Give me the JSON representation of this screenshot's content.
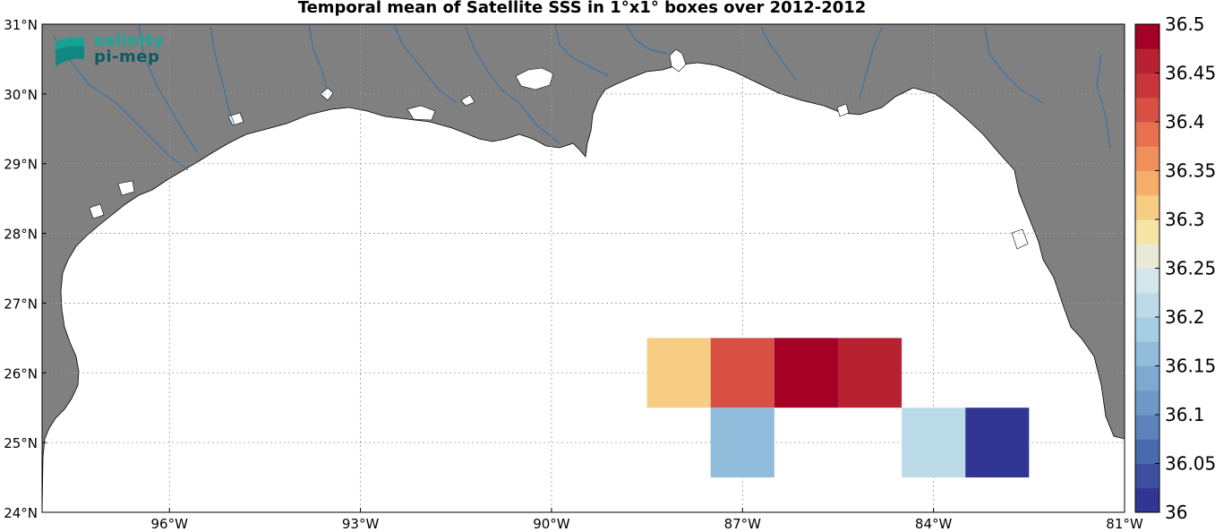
{
  "title": "Temporal mean of Satellite SSS in 1°x1° boxes over 2012-2012",
  "logo": {
    "line1": "salinity",
    "line2": "pi-mep"
  },
  "map": {
    "lon_range": [
      -98,
      -81
    ],
    "lat_range": [
      24,
      31
    ],
    "land_color": "#808080",
    "ocean_color": "#ffffff",
    "river_color": "#2a6fb0",
    "grid": true,
    "lon_ticks": [
      {
        "value": -96,
        "label": "96°W"
      },
      {
        "value": -93,
        "label": "93°W"
      },
      {
        "value": -90,
        "label": "90°W"
      },
      {
        "value": -87,
        "label": "87°W"
      },
      {
        "value": -84,
        "label": "84°W"
      },
      {
        "value": -81,
        "label": "81°W"
      }
    ],
    "lat_ticks": [
      {
        "value": 24,
        "label": "24°N"
      },
      {
        "value": 25,
        "label": "25°N"
      },
      {
        "value": 26,
        "label": "26°N"
      },
      {
        "value": 27,
        "label": "27°N"
      },
      {
        "value": 28,
        "label": "28°N"
      },
      {
        "value": 29,
        "label": "29°N"
      },
      {
        "value": 30,
        "label": "30°N"
      },
      {
        "value": 31,
        "label": "31°N"
      }
    ]
  },
  "chart_data": {
    "type": "heatmap",
    "title": "Temporal mean of Satellite SSS in 1°x1° boxes over 2012-2012",
    "cell_size_deg": 1,
    "cells": [
      {
        "lon": -88,
        "lat": 26,
        "value": 36.31
      },
      {
        "lon": -87,
        "lat": 26,
        "value": 36.41
      },
      {
        "lon": -86,
        "lat": 26,
        "value": 36.49
      },
      {
        "lon": -85,
        "lat": 26,
        "value": 36.46
      },
      {
        "lon": -87,
        "lat": 25,
        "value": 36.16
      },
      {
        "lon": -84,
        "lat": 25,
        "value": 36.21
      },
      {
        "lon": -83,
        "lat": 25,
        "value": 36.01
      }
    ],
    "colorbar": {
      "min": 36,
      "max": 36.5,
      "step": 0.025,
      "tick_labels": [
        "36",
        "36.05",
        "36.1",
        "36.15",
        "36.2",
        "36.25",
        "36.3",
        "36.35",
        "36.4",
        "36.45",
        "36.5"
      ],
      "colors": [
        "#313695",
        "#3e4fa0",
        "#4a6aae",
        "#5d82bc",
        "#6e98c8",
        "#7eaad2",
        "#91bcdb",
        "#a5cde3",
        "#bcdbe8",
        "#d3e6eb",
        "#e8e9d6",
        "#f5e4a4",
        "#f6cd82",
        "#f5ae6c",
        "#f0905d",
        "#e7704f",
        "#d85043",
        "#c8353a",
        "#b72231",
        "#a50026"
      ]
    }
  }
}
